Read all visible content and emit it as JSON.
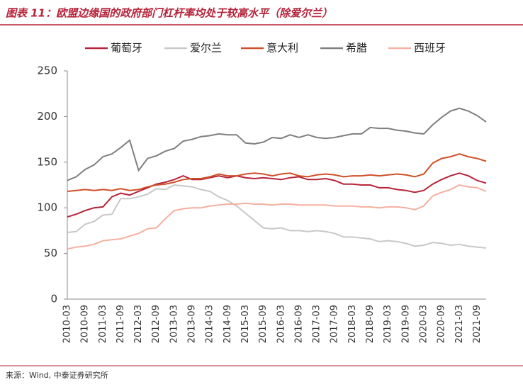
{
  "chart_data": {
    "type": "line",
    "title": "图表 11：欧盟边缘国的政府部门杠杆率均处于较高水平（除爱尔兰）",
    "source": "来源：Wind, 中泰证券研究所",
    "categories": [
      "2010-03",
      null,
      "2010-09",
      null,
      "2011-03",
      null,
      "2011-09",
      null,
      "2012-03",
      null,
      "2012-09",
      null,
      "2013-03",
      null,
      "2013-09",
      null,
      "2014-03",
      null,
      "2014-09",
      null,
      "2015-03",
      null,
      "2015-09",
      null,
      "2016-03",
      null,
      "2016-09",
      null,
      "2017-03",
      null,
      "2017-09",
      null,
      "2018-03",
      null,
      "2018-09",
      null,
      "2019-03",
      null,
      "2019-09",
      null,
      "2020-03",
      null,
      "2020-09",
      null,
      "2021-03",
      null,
      "2021-09",
      null
    ],
    "series": [
      {
        "name": "葡萄牙",
        "color": "#b5243a",
        "values": [
          90,
          93,
          97,
          100,
          101,
          112,
          116,
          114,
          118,
          122,
          126,
          128,
          131,
          135,
          131,
          131,
          133,
          135,
          133,
          135,
          133,
          132,
          133,
          132,
          131,
          133,
          134,
          131,
          131,
          132,
          130,
          126,
          126,
          125,
          125,
          122,
          122,
          120,
          119,
          117,
          119,
          126,
          131,
          135,
          138,
          135,
          130,
          127
        ]
      },
      {
        "name": "爱尔兰",
        "color": "#c8c8c8",
        "values": [
          73,
          74,
          82,
          85,
          92,
          93,
          110,
          110,
          112,
          115,
          121,
          120,
          125,
          124,
          123,
          120,
          118,
          112,
          108,
          102,
          94,
          86,
          78,
          77,
          78,
          75,
          75,
          74,
          75,
          74,
          72,
          68,
          68,
          67,
          66,
          63,
          64,
          63,
          61,
          58,
          59,
          62,
          61,
          59,
          60,
          58,
          57,
          56
        ]
      },
      {
        "name": "意大利",
        "color": "#d0502a",
        "values": [
          118,
          119,
          120,
          119,
          120,
          119,
          121,
          119,
          120,
          123,
          125,
          126,
          128,
          131,
          132,
          132,
          134,
          137,
          135,
          135,
          137,
          138,
          137,
          135,
          137,
          138,
          135,
          134,
          136,
          137,
          136,
          134,
          135,
          135,
          136,
          135,
          136,
          137,
          136,
          134,
          137,
          149,
          154,
          156,
          159,
          156,
          154,
          151
        ]
      },
      {
        "name": "希腊",
        "color": "#7f7f7f",
        "values": [
          130,
          134,
          142,
          147,
          156,
          159,
          166,
          174,
          141,
          154,
          157,
          162,
          165,
          173,
          175,
          178,
          179,
          181,
          180,
          180,
          171,
          170,
          172,
          177,
          176,
          180,
          177,
          180,
          177,
          176,
          177,
          179,
          181,
          181,
          188,
          187,
          187,
          185,
          184,
          182,
          181,
          191,
          199,
          206,
          209,
          206,
          201,
          194
        ]
      },
      {
        "name": "西班牙",
        "color": "#f4b0a0",
        "values": [
          55,
          57,
          58,
          60,
          64,
          65,
          66,
          69,
          72,
          77,
          78,
          88,
          97,
          99,
          100,
          100,
          102,
          103,
          104,
          104,
          105,
          104,
          104,
          103,
          104,
          104,
          103,
          103,
          103,
          103,
          102,
          102,
          102,
          101,
          101,
          100,
          101,
          101,
          100,
          98,
          102,
          113,
          117,
          120,
          125,
          123,
          122,
          118
        ]
      }
    ],
    "ylim": [
      0,
      250
    ],
    "yticks": [
      0,
      50,
      100,
      150,
      200,
      250
    ]
  }
}
